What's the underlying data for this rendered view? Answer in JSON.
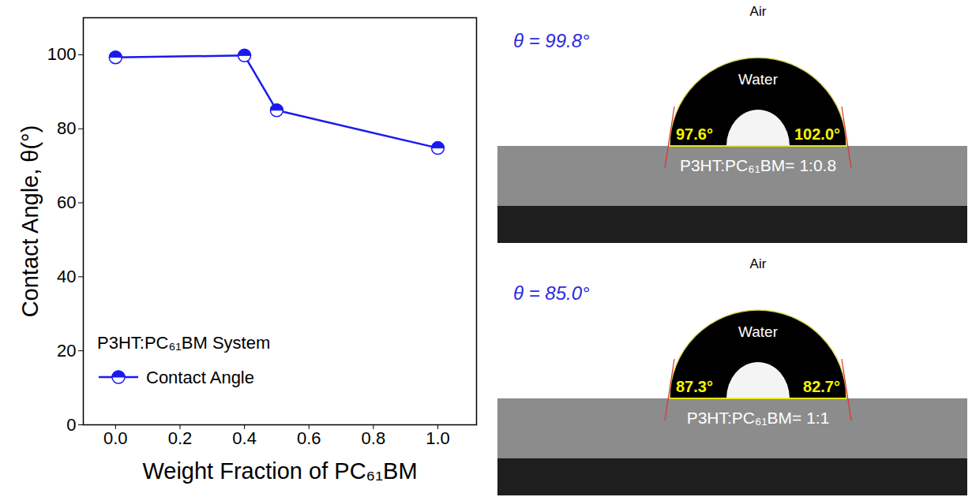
{
  "chart_data": {
    "type": "line",
    "x_label": "Weight Fraction of PC₆₁BM",
    "y_label": "Contact Angle, θ(°)",
    "legend_title": "P3HT:PC₆₁BM System",
    "legend": "bottom-left",
    "x": [
      0.0,
      0.4,
      0.5,
      1.0
    ],
    "series": [
      {
        "name": "Contact Angle",
        "color": "#1a1aee",
        "marker": "half-filled circle",
        "values": [
          99.3,
          99.8,
          85.0,
          74.8
        ]
      }
    ],
    "xlim": [
      -0.1,
      1.12
    ],
    "xticks": [
      {
        "value": 0,
        "label": "0.0"
      },
      {
        "value": 0.2,
        "label": "0.2"
      },
      {
        "value": 0.4,
        "label": "0.4"
      },
      {
        "value": 0.6,
        "label": "0.6"
      },
      {
        "value": 0.8,
        "label": "0.8"
      },
      {
        "value": 1,
        "label": "1.0"
      }
    ],
    "ylim": [
      0,
      110
    ],
    "yticks": [
      0,
      20,
      40,
      60,
      80,
      100
    ],
    "grid": false
  },
  "images": [
    {
      "top_label": "Air",
      "theta_label": "θ = 99.8°",
      "droplet_label": "Water",
      "left_angle": "97.6°",
      "right_angle": "102.0°",
      "sample_label": "P3HT:PC₆₁BM= 1:0.8"
    },
    {
      "top_label": "Air",
      "theta_label": "θ = 85.0°",
      "droplet_label": "Water",
      "left_angle": "87.3°",
      "right_angle": "82.7°",
      "sample_label": "P3HT:PC₆₁BM= 1:1"
    }
  ]
}
